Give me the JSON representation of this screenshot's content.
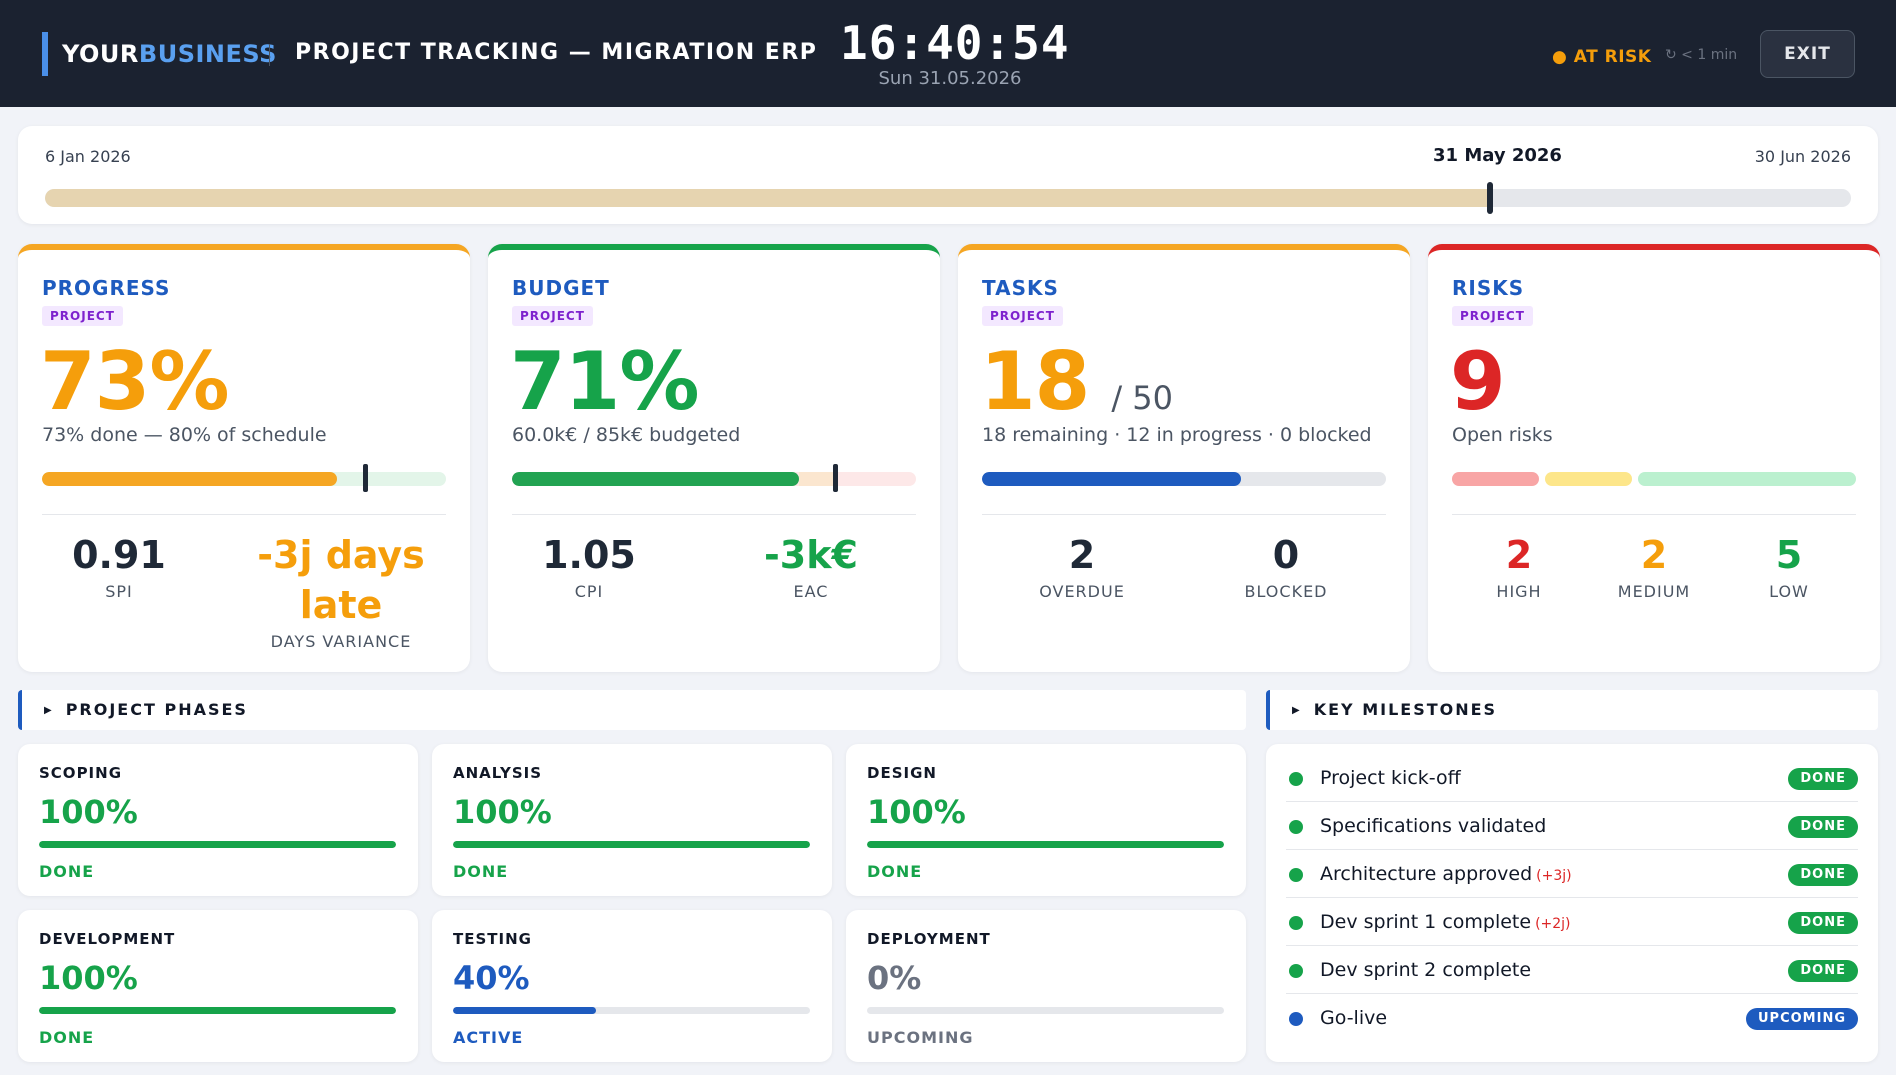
{
  "colors": {
    "accent_blue": "#1e5bbf",
    "green": "#16a34a",
    "orange": "#f59e0b",
    "red": "#dc2626",
    "gray": "#6b7280"
  },
  "header": {
    "brand_part1": "YOUR",
    "brand_part2": "BUSINESS",
    "title": "PROJECT TRACKING — MIGRATION ERP",
    "clock": "16:40:54",
    "date": "Sun 31.05.2026",
    "status": "● AT RISK",
    "refresh": "↻ < 1 min",
    "exit_label": "EXIT"
  },
  "timeline": {
    "start": "6 Jan 2026",
    "current": "31 May 2026",
    "end": "30 Jun 2026",
    "elapsed_fraction": 0.8
  },
  "cards": {
    "progress": {
      "title": "PROGRESS",
      "tag": "PROJECT",
      "value": "73%",
      "desc": "73% done — 80% of schedule",
      "done_fraction": 0.73,
      "schedule_fraction": 0.8,
      "spi": "0.91",
      "spi_label": "SPI",
      "variance": "-3j days late",
      "variance_label": "DAYS VARIANCE"
    },
    "budget": {
      "title": "BUDGET",
      "tag": "PROJECT",
      "value": "71%",
      "desc": "60.0k€ / 85k€ budgeted",
      "spent_fraction": 0.71,
      "marker_fraction": 0.8,
      "cpi": "1.05",
      "cpi_label": "CPI",
      "eac": "-3k€",
      "eac_label": "EAC"
    },
    "tasks": {
      "title": "TASKS",
      "tag": "PROJECT",
      "value": "18",
      "total": "/ 50",
      "desc": "18 remaining · 12 in progress · 0 blocked",
      "done_fraction": 0.64,
      "overdue": "2",
      "overdue_label": "OVERDUE",
      "blocked": "0",
      "blocked_label": "BLOCKED"
    },
    "risks": {
      "title": "RISKS",
      "tag": "PROJECT",
      "value": "9",
      "desc": "Open risks",
      "high": "2",
      "high_label": "HIGH",
      "medium": "2",
      "medium_label": "MEDIUM",
      "low": "5",
      "low_label": "LOW"
    }
  },
  "phases_section": {
    "title": "PROJECT PHASES",
    "items": [
      {
        "name": "SCOPING",
        "pct": "100%",
        "fraction": 1.0,
        "status": "DONE",
        "color": "#16a34a"
      },
      {
        "name": "ANALYSIS",
        "pct": "100%",
        "fraction": 1.0,
        "status": "DONE",
        "color": "#16a34a"
      },
      {
        "name": "DESIGN",
        "pct": "100%",
        "fraction": 1.0,
        "status": "DONE",
        "color": "#16a34a"
      },
      {
        "name": "DEVELOPMENT",
        "pct": "100%",
        "fraction": 1.0,
        "status": "DONE",
        "color": "#16a34a"
      },
      {
        "name": "TESTING",
        "pct": "40%",
        "fraction": 0.4,
        "status": "ACTIVE",
        "color": "#1e5bbf"
      },
      {
        "name": "DEPLOYMENT",
        "pct": "0%",
        "fraction": 0.0,
        "status": "UPCOMING",
        "color": "#6b7280"
      }
    ]
  },
  "milestones_section": {
    "title": "KEY MILESTONES",
    "items": [
      {
        "name": "Project kick-off",
        "delay": "",
        "badge": "DONE",
        "color": "#16a34a"
      },
      {
        "name": "Specifications validated",
        "delay": "",
        "badge": "DONE",
        "color": "#16a34a"
      },
      {
        "name": "Architecture approved",
        "delay": "(+3j)",
        "badge": "DONE",
        "color": "#16a34a"
      },
      {
        "name": "Dev sprint 1 complete",
        "delay": "(+2j)",
        "badge": "DONE",
        "color": "#16a34a"
      },
      {
        "name": "Dev sprint 2 complete",
        "delay": "",
        "badge": "DONE",
        "color": "#16a34a"
      },
      {
        "name": "Go-live",
        "delay": "",
        "badge": "UPCOMING",
        "color": "#1e5bbf"
      }
    ]
  }
}
